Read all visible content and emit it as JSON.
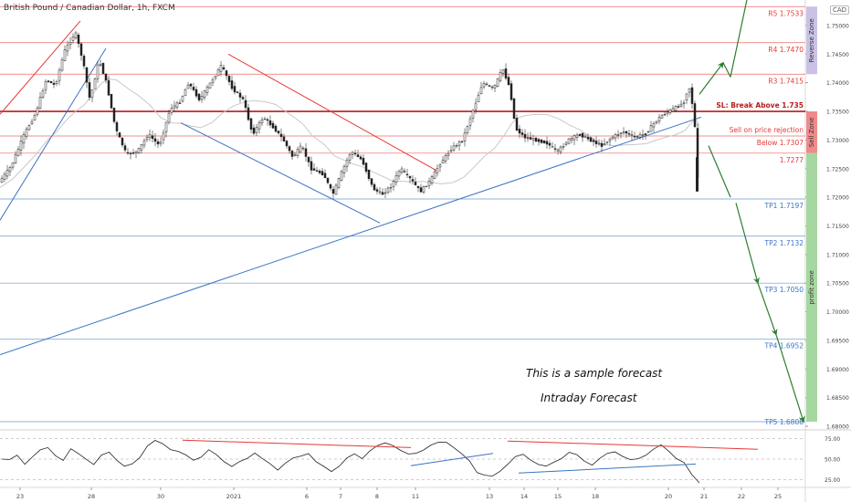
{
  "header": {
    "symbol": "British Pound / Canadian Dollar, 1h, FXCM",
    "currency_button": "CAD"
  },
  "notes": {
    "line1": "This is a sample forecast",
    "line2": "Intraday Forecast"
  },
  "colors": {
    "red": "#e53935",
    "blue": "#3b73c4",
    "green": "#2e7d32",
    "reverse_zone": "#c9c1e6",
    "sell_zone": "#f08a8a",
    "profit_zone": "#a7d7a0"
  },
  "chart_data": [
    {
      "type": "line",
      "title": "British Pound / Canadian Dollar, 1h, FXCM",
      "series_type": "candlestick",
      "ylim": [
        1.68,
        1.7535
      ],
      "price_axis_ticks": [
        "1.75000",
        "1.74500",
        "1.74000",
        "1.73500",
        "1.73000",
        "1.72500",
        "1.72000",
        "1.71500",
        "1.71000",
        "1.70500",
        "1.70000",
        "1.69500",
        "1.69000",
        "1.68500",
        "1.68000"
      ],
      "time_axis_ticks": [
        "23",
        "28",
        "30",
        "2021",
        "6",
        "7",
        "8",
        "11",
        "13",
        "14",
        "15",
        "18",
        "20",
        "21",
        "22",
        "25"
      ],
      "levels": [
        {
          "label": "R5 1.7533",
          "value": 1.7533,
          "color": "red"
        },
        {
          "label": "R4 1.7470",
          "value": 1.747,
          "color": "red"
        },
        {
          "label": "R3 1.7415",
          "value": 1.7415,
          "color": "red"
        },
        {
          "label": "SL: Break Above 1.735",
          "value": 1.735,
          "color": "darkred"
        },
        {
          "label": "Sell  on price rejection",
          "value": 1.7307,
          "color": "red"
        },
        {
          "label": "Below 1.7307",
          "value": 1.7307,
          "color": "red"
        },
        {
          "label": "1.7277",
          "value": 1.7277,
          "color": "red"
        },
        {
          "label": "TP1 1.7197",
          "value": 1.7197,
          "color": "blue"
        },
        {
          "label": "TP2 1.7132",
          "value": 1.7132,
          "color": "blue"
        },
        {
          "label": "TP3 1.7050",
          "value": 1.705,
          "color": "blue"
        },
        {
          "label": "TP4 1.6952",
          "value": 1.6952,
          "color": "blue"
        },
        {
          "label": "TP5 1.6808",
          "value": 1.6808,
          "color": "blue"
        }
      ],
      "zones": [
        {
          "label": "Reverse Zone",
          "from": 1.7533,
          "to": 1.7415
        },
        {
          "label": "Sell Zone",
          "from": 1.735,
          "to": 1.7277
        },
        {
          "label": "profit zone",
          "from": 1.7277,
          "to": 1.6808
        }
      ],
      "price_path": [
        [
          0,
          1.7225
        ],
        [
          14,
          1.7255
        ],
        [
          28,
          1.731
        ],
        [
          40,
          1.7345
        ],
        [
          52,
          1.7405
        ],
        [
          62,
          1.7395
        ],
        [
          72,
          1.7455
        ],
        [
          84,
          1.7488
        ],
        [
          92,
          1.744
        ],
        [
          100,
          1.737
        ],
        [
          110,
          1.744
        ],
        [
          118,
          1.74
        ],
        [
          128,
          1.732
        ],
        [
          140,
          1.7275
        ],
        [
          152,
          1.728
        ],
        [
          164,
          1.731
        ],
        [
          176,
          1.729
        ],
        [
          188,
          1.7355
        ],
        [
          198,
          1.7365
        ],
        [
          208,
          1.74
        ],
        [
          220,
          1.737
        ],
        [
          232,
          1.74
        ],
        [
          244,
          1.743
        ],
        [
          256,
          1.739
        ],
        [
          268,
          1.737
        ],
        [
          278,
          1.731
        ],
        [
          290,
          1.734
        ],
        [
          302,
          1.732
        ],
        [
          312,
          1.73
        ],
        [
          322,
          1.727
        ],
        [
          332,
          1.729
        ],
        [
          342,
          1.725
        ],
        [
          356,
          1.724
        ],
        [
          366,
          1.7205
        ],
        [
          376,
          1.7245
        ],
        [
          386,
          1.728
        ],
        [
          398,
          1.7265
        ],
        [
          410,
          1.7215
        ],
        [
          420,
          1.7205
        ],
        [
          430,
          1.722
        ],
        [
          440,
          1.725
        ],
        [
          452,
          1.723
        ],
        [
          462,
          1.721
        ],
        [
          472,
          1.7228
        ],
        [
          484,
          1.726
        ],
        [
          496,
          1.7285
        ],
        [
          508,
          1.73
        ],
        [
          518,
          1.7345
        ],
        [
          530,
          1.74
        ],
        [
          542,
          1.739
        ],
        [
          552,
          1.7425
        ],
        [
          560,
          1.739
        ],
        [
          566,
          1.732
        ],
        [
          576,
          1.7305
        ],
        [
          588,
          1.73
        ],
        [
          600,
          1.7295
        ],
        [
          612,
          1.728
        ],
        [
          624,
          1.73
        ],
        [
          636,
          1.731
        ],
        [
          648,
          1.73
        ],
        [
          660,
          1.729
        ],
        [
          672,
          1.7305
        ],
        [
          684,
          1.7315
        ],
        [
          696,
          1.7305
        ],
        [
          708,
          1.731
        ],
        [
          718,
          1.733
        ],
        [
          728,
          1.7345
        ],
        [
          740,
          1.7355
        ],
        [
          750,
          1.7365
        ],
        [
          756,
          1.7395
        ],
        [
          760,
          1.736
        ],
        [
          764,
          1.73
        ],
        [
          766,
          1.721
        ]
      ],
      "trendlines": [
        {
          "color": "red",
          "from": [
            0,
            1.7345
          ],
          "to": [
            88,
            1.7508
          ]
        },
        {
          "color": "blue",
          "from": [
            0,
            1.716
          ],
          "to": [
            116,
            1.746
          ]
        },
        {
          "color": "red",
          "from": [
            250,
            1.745
          ],
          "to": [
            480,
            1.7245
          ]
        },
        {
          "color": "blue",
          "from": [
            198,
            1.733
          ],
          "to": [
            416,
            1.7155
          ]
        },
        {
          "color": "blue",
          "from": [
            0,
            1.6925
          ],
          "to": [
            768,
            1.734
          ]
        }
      ],
      "forecast_path": [
        [
          766,
          1.738
        ],
        [
          792,
          1.7435
        ],
        [
          800,
          1.741
        ],
        [
          820,
          1.756
        ],
        [
          776,
          1.729
        ],
        [
          800,
          1.72
        ],
        [
          806,
          1.719
        ],
        [
          830,
          1.705
        ],
        [
          850,
          1.696
        ],
        [
          880,
          1.6808
        ]
      ]
    },
    {
      "type": "line",
      "title": "",
      "ylim": [
        20,
        80
      ],
      "axis_ticks": [
        "75.00",
        "50.00",
        "25.00"
      ],
      "values": [
        50,
        48,
        55,
        45,
        52,
        60,
        65,
        55,
        47,
        62,
        58,
        50,
        42,
        55,
        60,
        48,
        40,
        45,
        53,
        65,
        72,
        70,
        62,
        58,
        55,
        50,
        52,
        60,
        56,
        48,
        40,
        46,
        52,
        58,
        49,
        44,
        38,
        45,
        50,
        54,
        58,
        46,
        40,
        36,
        42,
        50,
        56,
        52,
        60,
        65,
        70,
        68,
        60,
        55,
        58,
        62,
        66,
        70,
        72,
        64,
        55,
        48,
        35,
        30,
        28,
        36,
        45,
        52,
        55,
        50,
        44,
        40,
        46,
        52,
        58,
        54,
        48,
        44,
        50,
        56,
        60,
        54,
        48,
        50,
        56,
        62,
        66,
        60,
        52,
        45,
        30,
        22
      ],
      "trendlines": [
        {
          "color": "red",
          "from": [
            200,
            73
          ],
          "to": [
            450,
            64
          ]
        },
        {
          "color": "blue",
          "from": [
            450,
            42
          ],
          "to": [
            540,
            57
          ]
        },
        {
          "color": "red",
          "from": [
            556,
            72
          ],
          "to": [
            830,
            62
          ]
        },
        {
          "color": "blue",
          "from": [
            568,
            33
          ],
          "to": [
            762,
            44
          ]
        }
      ]
    }
  ]
}
